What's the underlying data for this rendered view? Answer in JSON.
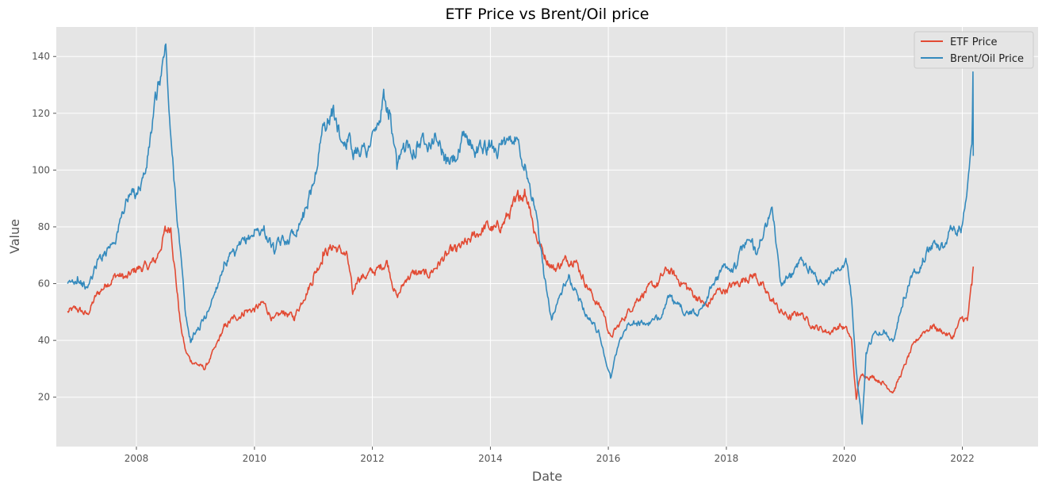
{
  "chart_data": {
    "type": "line",
    "title": "ETF Price vs Brent/Oil price",
    "xlabel": "Date",
    "ylabel": "Value",
    "xlim": [
      "2006-08-23",
      "2023-04-15"
    ],
    "ylim": [
      2.6,
      150.4
    ],
    "x_ticks": [
      {
        "label": "2008",
        "date": "2008-01-01"
      },
      {
        "label": "2010",
        "date": "2010-01-01"
      },
      {
        "label": "2012",
        "date": "2012-01-01"
      },
      {
        "label": "2014",
        "date": "2014-01-01"
      },
      {
        "label": "2016",
        "date": "2016-01-01"
      },
      {
        "label": "2018",
        "date": "2018-01-01"
      },
      {
        "label": "2020",
        "date": "2020-01-01"
      },
      {
        "label": "2022",
        "date": "2022-01-01"
      }
    ],
    "y_ticks": [
      20,
      40,
      60,
      80,
      100,
      120,
      140
    ],
    "grid": true,
    "legend": "top-right",
    "style": "ggplot",
    "colors": {
      "background": "#e5e5e5",
      "grid": "#ffffff",
      "etf": "#e24a33",
      "brent": "#348abd"
    },
    "series": [
      {
        "name": "ETF Price",
        "color": "#e24a33",
        "x": [
          "2006-11-01",
          "2007-01-01",
          "2007-03-01",
          "2007-05-01",
          "2007-07-01",
          "2007-09-01",
          "2007-11-01",
          "2008-01-01",
          "2008-03-01",
          "2008-05-01",
          "2008-07-01",
          "2008-08-01",
          "2008-09-01",
          "2008-10-01",
          "2008-11-01",
          "2008-12-01",
          "2009-01-01",
          "2009-02-01",
          "2009-03-01",
          "2009-05-01",
          "2009-07-01",
          "2009-09-01",
          "2009-11-01",
          "2010-01-01",
          "2010-03-01",
          "2010-05-01",
          "2010-07-01",
          "2010-09-01",
          "2010-11-01",
          "2011-01-01",
          "2011-03-01",
          "2011-05-01",
          "2011-07-01",
          "2011-08-01",
          "2011-09-01",
          "2011-10-01",
          "2011-12-01",
          "2012-02-01",
          "2012-04-01",
          "2012-06-01",
          "2012-08-01",
          "2012-10-01",
          "2012-12-01",
          "2013-02-01",
          "2013-04-01",
          "2013-06-01",
          "2013-08-01",
          "2013-10-01",
          "2013-12-01",
          "2014-02-01",
          "2014-04-01",
          "2014-06-01",
          "2014-07-01",
          "2014-08-01",
          "2014-09-01",
          "2014-10-01",
          "2014-12-01",
          "2015-02-01",
          "2015-04-01",
          "2015-06-01",
          "2015-08-01",
          "2015-10-01",
          "2015-12-01",
          "2016-01-15",
          "2016-03-01",
          "2016-05-01",
          "2016-07-01",
          "2016-09-01",
          "2016-11-01",
          "2017-01-01",
          "2017-03-01",
          "2017-05-01",
          "2017-07-01",
          "2017-09-01",
          "2017-11-01",
          "2018-01-01",
          "2018-03-01",
          "2018-05-01",
          "2018-07-01",
          "2018-09-01",
          "2018-10-15",
          "2018-12-01",
          "2019-02-01",
          "2019-04-01",
          "2019-06-01",
          "2019-08-01",
          "2019-10-01",
          "2019-12-01",
          "2020-01-15",
          "2020-02-15",
          "2020-03-15",
          "2020-04-01",
          "2020-05-01",
          "2020-07-01",
          "2020-09-01",
          "2020-11-01",
          "2021-01-01",
          "2021-03-01",
          "2021-05-01",
          "2021-07-01",
          "2021-09-01",
          "2021-11-01",
          "2022-01-01",
          "2022-02-01",
          "2022-03-01",
          "2022-03-10"
        ],
        "y": [
          50,
          51,
          49,
          56,
          60,
          63,
          62,
          65,
          66,
          68,
          79,
          80,
          62,
          45,
          36,
          33,
          32,
          31,
          30,
          37,
          45,
          48,
          50,
          51,
          53,
          47,
          50,
          48,
          55,
          62,
          70,
          73,
          71,
          69,
          56,
          62,
          63,
          65,
          68,
          55,
          62,
          64,
          63,
          66,
          70,
          72,
          74,
          77,
          80,
          79,
          82,
          88,
          91,
          92,
          88,
          78,
          70,
          65,
          68,
          69,
          62,
          55,
          50,
          41,
          45,
          50,
          55,
          58,
          60,
          65,
          62,
          59,
          55,
          52,
          57,
          58,
          60,
          62,
          63,
          57,
          54,
          50,
          48,
          50,
          46,
          44,
          43,
          45,
          44,
          40,
          19,
          26,
          28,
          27,
          25,
          22,
          30,
          38,
          43,
          45,
          43,
          41,
          48,
          47,
          60,
          66
        ]
      },
      {
        "name": "Brent/Oil Price",
        "color": "#348abd",
        "x": [
          "2006-11-01",
          "2007-01-01",
          "2007-03-01",
          "2007-05-01",
          "2007-07-01",
          "2007-09-01",
          "2007-11-01",
          "2008-01-01",
          "2008-03-01",
          "2008-05-01",
          "2008-07-01",
          "2008-08-01",
          "2008-09-01",
          "2008-10-01",
          "2008-11-01",
          "2008-12-01",
          "2009-01-01",
          "2009-02-01",
          "2009-03-01",
          "2009-05-01",
          "2009-07-01",
          "2009-09-01",
          "2009-11-01",
          "2010-01-01",
          "2010-03-01",
          "2010-05-01",
          "2010-07-01",
          "2010-09-01",
          "2010-11-01",
          "2011-01-01",
          "2011-03-01",
          "2011-05-01",
          "2011-07-01",
          "2011-08-01",
          "2011-09-01",
          "2011-10-01",
          "2011-12-01",
          "2012-02-01",
          "2012-03-15",
          "2012-04-15",
          "2012-06-01",
          "2012-08-01",
          "2012-10-01",
          "2012-12-01",
          "2013-02-01",
          "2013-04-01",
          "2013-06-01",
          "2013-08-01",
          "2013-10-01",
          "2013-12-01",
          "2014-02-01",
          "2014-04-01",
          "2014-06-01",
          "2014-07-01",
          "2014-08-01",
          "2014-09-01",
          "2014-10-01",
          "2014-12-01",
          "2015-01-15",
          "2015-03-01",
          "2015-05-01",
          "2015-07-01",
          "2015-09-01",
          "2015-11-01",
          "2016-01-15",
          "2016-03-01",
          "2016-05-01",
          "2016-07-01",
          "2016-09-01",
          "2016-11-01",
          "2017-01-01",
          "2017-03-01",
          "2017-05-01",
          "2017-07-01",
          "2017-09-01",
          "2017-11-01",
          "2018-01-01",
          "2018-03-01",
          "2018-05-01",
          "2018-07-01",
          "2018-09-01",
          "2018-10-15",
          "2018-12-01",
          "2019-02-01",
          "2019-04-01",
          "2019-06-01",
          "2019-08-01",
          "2019-10-01",
          "2019-12-01",
          "2020-01-15",
          "2020-02-15",
          "2020-03-15",
          "2020-04-01",
          "2020-04-21",
          "2020-05-15",
          "2020-07-01",
          "2020-09-01",
          "2020-11-01",
          "2021-01-01",
          "2021-03-01",
          "2021-05-01",
          "2021-07-01",
          "2021-09-01",
          "2021-11-01",
          "2022-01-01",
          "2022-02-01",
          "2022-03-01",
          "2022-03-08",
          "2022-03-10"
        ],
        "y": [
          59,
          62,
          58,
          67,
          72,
          77,
          90,
          92,
          100,
          125,
          143,
          110,
          90,
          70,
          48,
          40,
          43,
          45,
          48,
          57,
          68,
          70,
          75,
          78,
          79,
          72,
          75,
          78,
          85,
          95,
          115,
          120,
          110,
          112,
          106,
          108,
          107,
          115,
          125,
          120,
          100,
          110,
          108,
          111,
          112,
          103,
          104,
          112,
          107,
          108,
          108,
          108,
          112,
          107,
          102,
          95,
          88,
          62,
          48,
          55,
          62,
          55,
          48,
          43,
          27,
          38,
          46,
          46,
          46,
          47,
          55,
          52,
          50,
          49,
          55,
          62,
          66,
          66,
          75,
          72,
          80,
          86,
          60,
          62,
          68,
          66,
          60,
          62,
          66,
          68,
          55,
          30,
          20,
          10,
          35,
          42,
          43,
          40,
          55,
          64,
          68,
          74,
          73,
          80,
          80,
          92,
          110,
          133,
          105
        ]
      }
    ]
  }
}
